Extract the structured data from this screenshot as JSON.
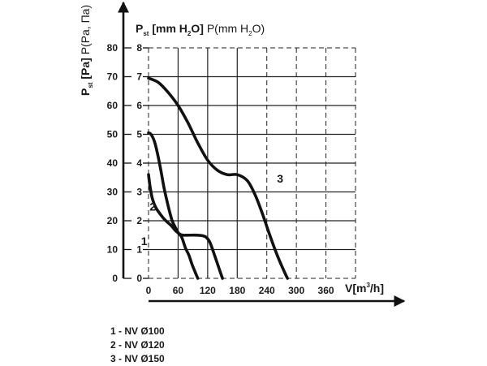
{
  "chart_data": {
    "type": "line",
    "title": "",
    "y_left": {
      "label_main": "P",
      "label_sub": "st",
      "label_unit": " [Pa]",
      "label_alt": " P(Pa, Па)",
      "ticks": [
        "80",
        "70",
        "60",
        "50",
        "40",
        "30",
        "20",
        "10",
        "0"
      ],
      "ylim": [
        0,
        80
      ]
    },
    "y_right": {
      "label_main": "P",
      "label_sub": "st",
      "label_unit": " [mm H",
      "label_unit_sub": "2",
      "label_unit_end": "O]",
      "label_alt": " P(mm H",
      "label_alt_sub": "2",
      "label_alt_end": "O)",
      "ticks": [
        "8",
        "7",
        "6",
        "5",
        "4",
        "3",
        "2",
        "1",
        "0"
      ],
      "ylim": [
        0,
        8
      ]
    },
    "x_axis": {
      "label_main": "V[m",
      "label_sup": "3",
      "label_end": "/h]",
      "ticks": [
        "0",
        "60",
        "120",
        "180",
        "240",
        "300",
        "360"
      ],
      "xlim": [
        0,
        420
      ]
    },
    "grid": true,
    "series": [
      {
        "label": "1",
        "x": [
          0,
          3,
          8,
          15,
          25,
          35,
          45,
          55,
          62,
          68,
          75,
          82,
          88,
          95,
          100
        ],
        "y": [
          3.6,
          3.2,
          2.75,
          2.45,
          2.2,
          2.0,
          1.85,
          1.65,
          1.55,
          1.4,
          1.05,
          0.8,
          0.5,
          0.2,
          0.0
        ]
      },
      {
        "label": "2",
        "x": [
          0,
          5,
          12,
          18,
          25,
          32,
          40,
          48,
          55,
          62,
          70,
          80,
          100,
          115,
          123,
          128,
          135,
          143,
          150
        ],
        "y": [
          5.05,
          5.0,
          4.75,
          4.35,
          3.75,
          3.1,
          2.5,
          2.0,
          1.75,
          1.55,
          1.5,
          1.5,
          1.5,
          1.45,
          1.3,
          1.1,
          0.75,
          0.35,
          0.0
        ]
      },
      {
        "label": "3",
        "x": [
          0,
          20,
          40,
          60,
          80,
          100,
          120,
          140,
          160,
          180,
          200,
          215,
          230,
          245,
          260,
          275,
          282
        ],
        "y": [
          6.95,
          6.8,
          6.45,
          6.0,
          5.4,
          4.7,
          4.1,
          3.75,
          3.6,
          3.6,
          3.4,
          2.95,
          2.3,
          1.55,
          0.85,
          0.25,
          0.0
        ]
      }
    ]
  },
  "legend": [
    "1 - NV Ø100",
    "2 - NV Ø120",
    "3 - NV Ø150"
  ]
}
